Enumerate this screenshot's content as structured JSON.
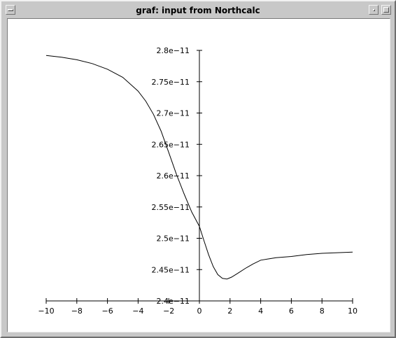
{
  "window": {
    "title": "graf:  input from Northcalc",
    "icons": {
      "menu": "window-menu-icon",
      "minimize": "minimize-icon",
      "maximize": "maximize-icon"
    }
  },
  "chart_data": {
    "type": "line",
    "title": "",
    "xlabel": "",
    "ylabel": "",
    "xlim": [
      -10,
      10
    ],
    "ylim": [
      2.4e-11,
      2.8e-11
    ],
    "x_ticks": [
      -10,
      -8,
      -6,
      -4,
      -2,
      0,
      2,
      4,
      6,
      8,
      10
    ],
    "x_tick_labels": [
      "−10",
      "−8",
      "−6",
      "−4",
      "−2",
      "0",
      "2",
      "4",
      "6",
      "8",
      "10"
    ],
    "y_ticks": [
      2.4e-11,
      2.45e-11,
      2.5e-11,
      2.55e-11,
      2.6e-11,
      2.65e-11,
      2.7e-11,
      2.75e-11,
      2.8e-11
    ],
    "y_tick_labels": [
      "2.4e−11",
      "2.45e−11",
      "2.5e−11",
      "2.55e−11",
      "2.6e−11",
      "2.65e−11",
      "2.7e−11",
      "2.75e−11",
      "2.8e−11"
    ],
    "grid": false,
    "series": [
      {
        "color": "#000000",
        "x": [
          -10,
          -9,
          -8,
          -7,
          -6,
          -5,
          -4,
          -3.5,
          -3,
          -2.5,
          -2,
          -1.5,
          -1,
          -0.5,
          0,
          0.3,
          0.6,
          0.9,
          1.2,
          1.5,
          1.8,
          2.1,
          2.5,
          3,
          3.5,
          4,
          4.5,
          5,
          6,
          7,
          8,
          9,
          10
        ],
        "y": [
          2.792e-11,
          2.789e-11,
          2.785e-11,
          2.779e-11,
          2.77e-11,
          2.757e-11,
          2.735e-11,
          2.719e-11,
          2.698e-11,
          2.671e-11,
          2.637e-11,
          2.602e-11,
          2.571e-11,
          2.542e-11,
          2.519e-11,
          2.496e-11,
          2.474e-11,
          2.455e-11,
          2.442e-11,
          2.436e-11,
          2.435e-11,
          2.438e-11,
          2.444e-11,
          2.452e-11,
          2.459e-11,
          2.465e-11,
          2.467e-11,
          2.469e-11,
          2.471e-11,
          2.474e-11,
          2.476e-11,
          2.477e-11,
          2.478e-11
        ]
      }
    ]
  }
}
